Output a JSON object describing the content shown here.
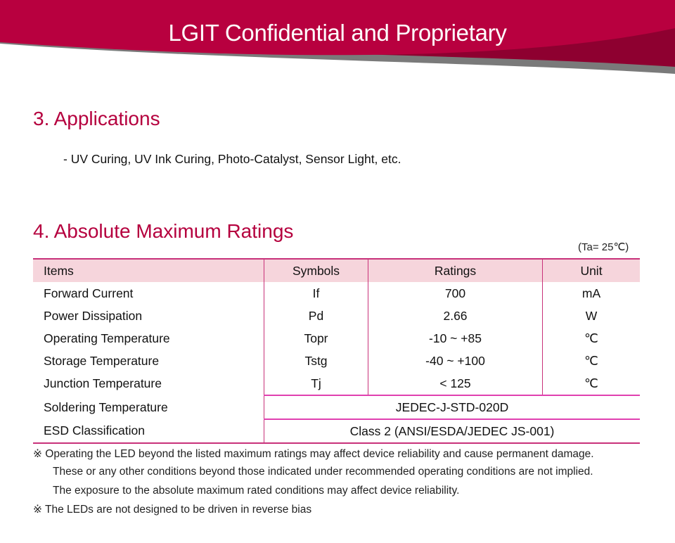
{
  "header": {
    "title": "LGIT Confidential and Proprietary"
  },
  "section3": {
    "title": "3. Applications",
    "text": "- UV Curing, UV Ink Curing, Photo-Catalyst, Sensor Light, etc."
  },
  "section4": {
    "title": "4. Absolute Maximum Ratings",
    "condition": "(Ta= 25℃)"
  },
  "table": {
    "headers": [
      "Items",
      "Symbols",
      "Ratings",
      "Unit"
    ],
    "rows": [
      [
        "Forward Current",
        "If",
        "700",
        "mA"
      ],
      [
        "Power Dissipation",
        "Pd",
        "2.66",
        "W"
      ],
      [
        "Operating Temperature",
        "Topr",
        "-10 ~ +85",
        "℃"
      ],
      [
        "Storage Temperature",
        "Tstg",
        "-40 ~ +100",
        "℃"
      ],
      [
        "Junction Temperature",
        "Tj",
        "< 125",
        "℃"
      ]
    ],
    "span_rows": [
      [
        "Soldering Temperature",
        "JEDEC-J-STD-020D"
      ],
      [
        "ESD Classification",
        "Class 2 (ANSI/ESDA/JEDEC JS-001)"
      ]
    ]
  },
  "notes": [
    "※ Operating the LED beyond the listed maximum ratings may affect device reliability and cause permanent damage.",
    "These or any other conditions beyond those indicated under recommended operating conditions are not  implied.",
    "The exposure to the absolute maximum rated conditions may affect device reliability.",
    "※ The LEDs are not designed to be driven in reverse bias"
  ],
  "colors": {
    "brand": "#b5003e",
    "table_border": "#c8327a",
    "header_fill": "#f6d5dc"
  }
}
